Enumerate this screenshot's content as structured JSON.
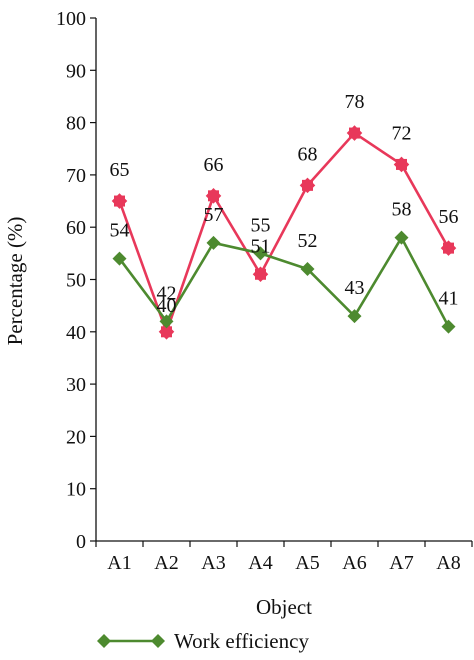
{
  "chart_data": {
    "type": "line",
    "title": "",
    "xlabel": "Object",
    "ylabel": "Percentage (%)",
    "categories": [
      "A1",
      "A2",
      "A3",
      "A4",
      "A5",
      "A6",
      "A7",
      "A8"
    ],
    "ylim": [
      0,
      100
    ],
    "yticks": [
      0,
      10,
      20,
      30,
      40,
      50,
      60,
      70,
      80,
      90,
      100
    ],
    "grid": false,
    "legend_position": "bottom",
    "series": [
      {
        "values": [
          65,
          40,
          66,
          51,
          68,
          78,
          72,
          56
        ],
        "color": "#e8385a",
        "marker": "square",
        "data_labels": [
          "65",
          "40",
          "66",
          "51",
          "68",
          "78",
          "72",
          "56"
        ]
      },
      {
        "name": "Work efficiency",
        "values": [
          54,
          42,
          57,
          55,
          52,
          43,
          58,
          41
        ],
        "color": "#4d8a2f",
        "marker": "diamond",
        "data_labels": [
          "54",
          "42",
          "57",
          "55",
          "52",
          "43",
          "58",
          "41"
        ]
      }
    ]
  }
}
